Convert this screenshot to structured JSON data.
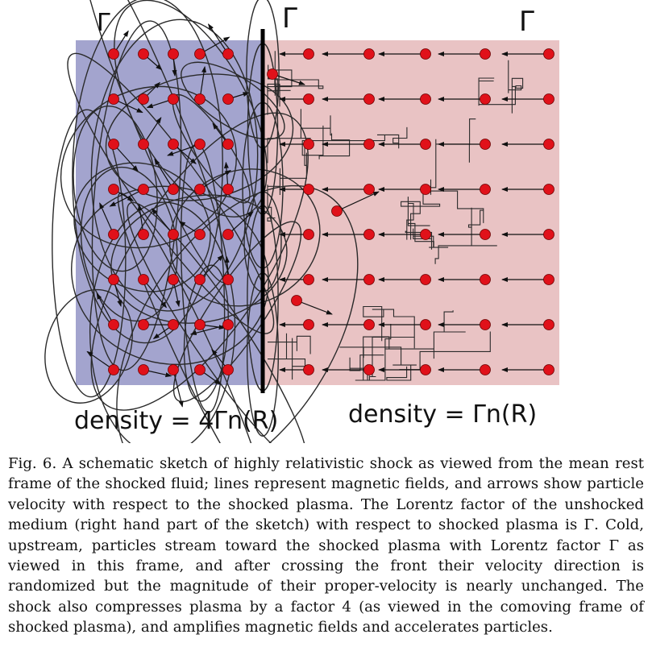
{
  "figure": {
    "left_label": "Γ",
    "upstream_label_1": "Γ",
    "upstream_label_2": "Γ",
    "downstream_density": "density = 4Γn(R)",
    "upstream_density": "density = Γn(R)",
    "colors": {
      "shocked_region": "#a3a4ce",
      "unshocked_region": "#e9c3c4",
      "particle": "#e0111a",
      "shock_front": "#000000",
      "field_line": "#2a2a2a"
    }
  },
  "caption": {
    "text": "Fig. 6. A schematic sketch of highly relativistic shock as viewed from the mean rest frame of the shocked fluid; lines represent magnetic fields, and arrows show particle velocity with respect to the shocked plasma. The Lorentz factor of the unshocked medium (right hand part of the sketch) with respect to shocked plasma is Γ. Cold, upstream, particles stream toward the shocked plasma with Lorentz factor Γ as viewed in this frame, and after crossing the front their velocity direction is randomized but the magnitude of their proper-velocity is nearly unchanged. The shock also compresses plasma by a factor 4 (as viewed in the comoving frame of shocked plasma), and amplifies magnetic fields and accelerates particles."
  }
}
